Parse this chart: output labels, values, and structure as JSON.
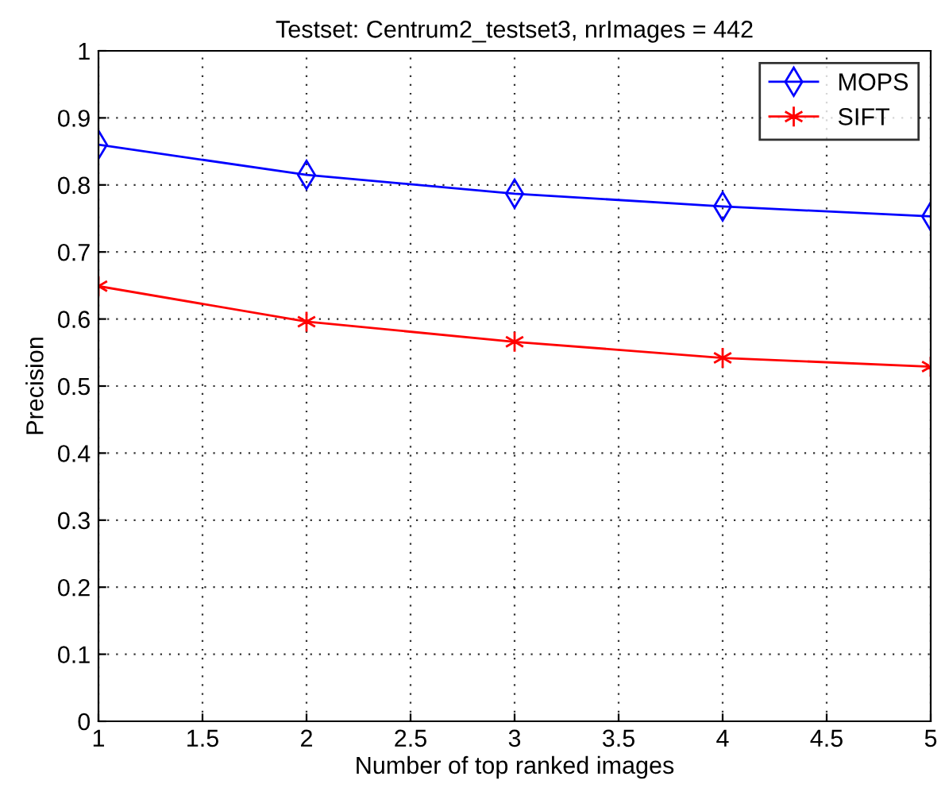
{
  "chart_data": {
    "type": "line",
    "title": "Testset: Centrum2_testset3, nrImages = 442",
    "xlabel": "Number of top ranked images",
    "ylabel": "Precision",
    "x": [
      1,
      2,
      3,
      4,
      5
    ],
    "series": [
      {
        "name": "MOPS",
        "color": "#0000ff",
        "marker": "diamond",
        "values": [
          0.86,
          0.815,
          0.787,
          0.768,
          0.753
        ]
      },
      {
        "name": "SIFT",
        "color": "#ff0000",
        "marker": "cross",
        "values": [
          0.649,
          0.596,
          0.566,
          0.542,
          0.529
        ]
      }
    ],
    "xlim": [
      1,
      5
    ],
    "xticks": [
      1,
      1.5,
      2,
      2.5,
      3,
      3.5,
      4,
      4.5,
      5
    ],
    "ylim": [
      0,
      1
    ],
    "yticks": [
      0,
      0.1,
      0.2,
      0.3,
      0.4,
      0.5,
      0.6,
      0.7,
      0.8,
      0.9,
      1
    ],
    "grid": true,
    "legend": "top right",
    "line_style": "solid"
  }
}
